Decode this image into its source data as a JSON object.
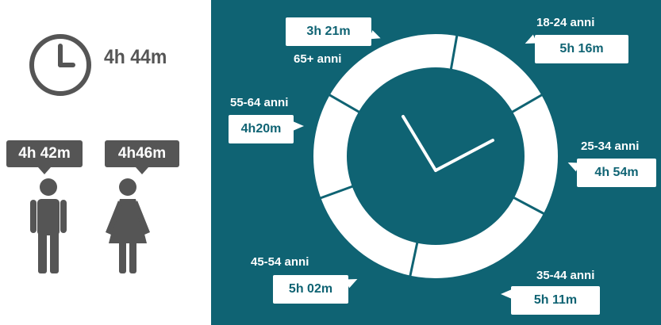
{
  "colors": {
    "panel": "#0f6373",
    "gray": "#555555",
    "white": "#ffffff"
  },
  "icons": {
    "total": "clock-icon",
    "male": "male-person-icon",
    "female": "female-person-icon"
  },
  "total": {
    "value": "4h 44m"
  },
  "gender": {
    "male": "4h 42m",
    "female": "4h46m"
  },
  "age_groups": [
    {
      "label": "18-24 anni",
      "time": "5h 16m"
    },
    {
      "label": "25-34 anni",
      "time": "4h 54m"
    },
    {
      "label": "35-44 anni",
      "time": "5h 11m"
    },
    {
      "label": "45-54 anni",
      "time": "5h 02m"
    },
    {
      "label": "55-64 anni",
      "time": "4h20m"
    },
    {
      "label": "65+ anni",
      "time": "3h 21m"
    }
  ]
}
